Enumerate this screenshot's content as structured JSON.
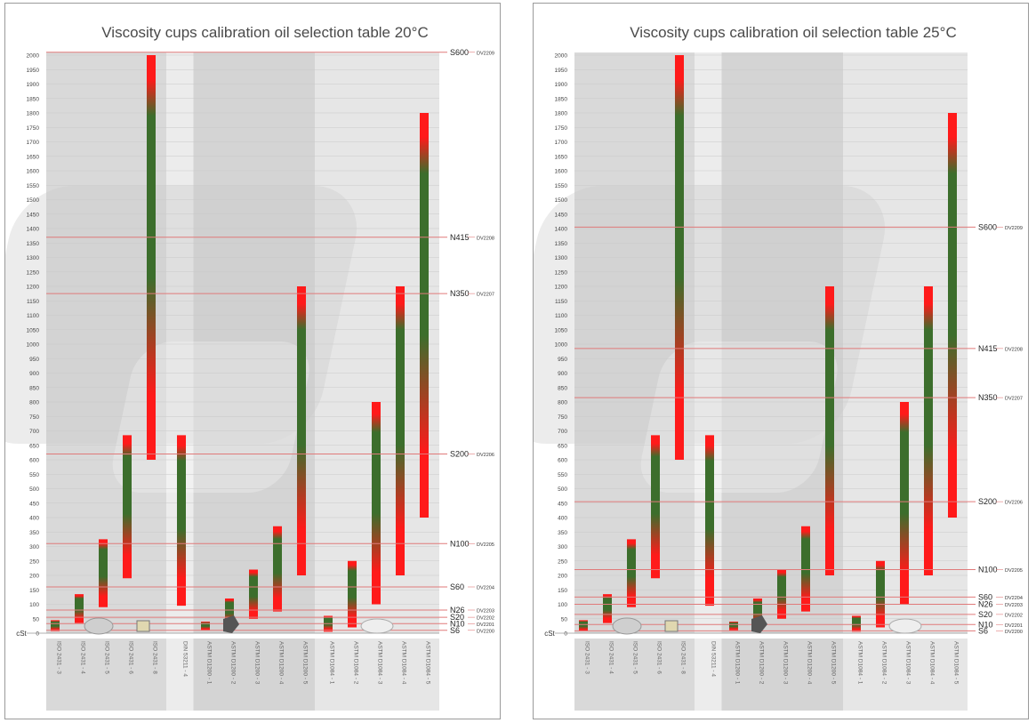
{
  "y_unit": "cSt",
  "y_ticks": [
    0,
    50,
    100,
    150,
    200,
    250,
    300,
    350,
    400,
    450,
    500,
    550,
    600,
    650,
    700,
    750,
    800,
    850,
    900,
    950,
    1000,
    1050,
    1100,
    1150,
    1200,
    1250,
    1300,
    1350,
    1400,
    1450,
    1500,
    1550,
    1600,
    1650,
    1700,
    1750,
    1800,
    1850,
    1900,
    1950,
    2000
  ],
  "cups": [
    "ISO 2431 - 3",
    "ISO 2431 - 4",
    "ISO 2431 - 5",
    "ISO 2431 - 6",
    "ISO 2431 - 8",
    "DIN 53211 - 4",
    "ASTM D1200 - 1",
    "ASTM D1200 - 2",
    "ASTM D1200 - 3",
    "ASTM D1200 - 4",
    "ASTM D1200 - 5",
    "ASTM D1084 - 1",
    "ASTM D1084 - 2",
    "ASTM D1084 - 3",
    "ASTM D1084 - 4",
    "ASTM D1084 - 5"
  ],
  "colors": {
    "green": "#3c6e2c",
    "red": "#ff1a1a",
    "line": "#e07a7a",
    "shade": "#d8d8d8"
  },
  "chart_data": [
    {
      "type": "bar",
      "title": "Viscosity cups calibration oil selection table 20°C",
      "ylabel": "cSt",
      "ylim": [
        0,
        2000
      ],
      "categories": [
        "ISO 2431 - 3",
        "ISO 2431 - 4",
        "ISO 2431 - 5",
        "ISO 2431 - 6",
        "ISO 2431 - 8",
        "DIN 53211 - 4",
        "ASTM D1200 - 1",
        "ASTM D1200 - 2",
        "ASTM D1200 - 3",
        "ASTM D1200 - 4",
        "ASTM D1200 - 5",
        "ASTM D1084 - 1",
        "ASTM D1084 - 2",
        "ASTM D1084 - 3",
        "ASTM D1084 - 4",
        "ASTM D1084 - 5"
      ],
      "ranges": [
        [
          7,
          45
        ],
        [
          35,
          135
        ],
        [
          90,
          325
        ],
        [
          190,
          685
        ],
        [
          600,
          2000
        ],
        [
          95,
          685
        ],
        [
          10,
          40
        ],
        [
          28,
          120
        ],
        [
          50,
          220
        ],
        [
          75,
          370
        ],
        [
          200,
          1200
        ],
        [
          5,
          60
        ],
        [
          20,
          250
        ],
        [
          100,
          800
        ],
        [
          200,
          1200
        ],
        [
          400,
          1800
        ]
      ],
      "oils": [
        {
          "name": "S600",
          "code": "DV2209",
          "value": 2010
        },
        {
          "name": "N415",
          "code": "DV2208",
          "value": 1370
        },
        {
          "name": "N350",
          "code": "DV2207",
          "value": 1175
        },
        {
          "name": "S200",
          "code": "DV2206",
          "value": 620
        },
        {
          "name": "N100",
          "code": "DV2205",
          "value": 310
        },
        {
          "name": "S60",
          "code": "DV2204",
          "value": 160
        },
        {
          "name": "N26",
          "code": "DV2203",
          "value": 80
        },
        {
          "name": "S20",
          "code": "DV2202",
          "value": 55
        },
        {
          "name": "N10",
          "code": "DV2201",
          "value": 33
        },
        {
          "name": "S6",
          "code": "DV2200",
          "value": 10
        }
      ]
    },
    {
      "type": "bar",
      "title": "Viscosity cups calibration oil selection table 25°C",
      "ylabel": "cSt",
      "ylim": [
        0,
        2000
      ],
      "categories": [
        "ISO 2431 - 3",
        "ISO 2431 - 4",
        "ISO 2431 - 5",
        "ISO 2431 - 6",
        "ISO 2431 - 8",
        "DIN 53211 - 4",
        "ASTM D1200 - 1",
        "ASTM D1200 - 2",
        "ASTM D1200 - 3",
        "ASTM D1200 - 4",
        "ASTM D1200 - 5",
        "ASTM D1084 - 1",
        "ASTM D1084 - 2",
        "ASTM D1084 - 3",
        "ASTM D1084 - 4",
        "ASTM D1084 - 5"
      ],
      "ranges": [
        [
          7,
          45
        ],
        [
          35,
          135
        ],
        [
          90,
          325
        ],
        [
          190,
          685
        ],
        [
          600,
          2000
        ],
        [
          95,
          685
        ],
        [
          10,
          40
        ],
        [
          28,
          120
        ],
        [
          50,
          220
        ],
        [
          75,
          370
        ],
        [
          200,
          1200
        ],
        [
          5,
          60
        ],
        [
          20,
          250
        ],
        [
          100,
          800
        ],
        [
          200,
          1200
        ],
        [
          400,
          1800
        ]
      ],
      "oils": [
        {
          "name": "S600",
          "code": "DV2209",
          "value": 1405
        },
        {
          "name": "N415",
          "code": "DV2208",
          "value": 985
        },
        {
          "name": "N350",
          "code": "DV2207",
          "value": 815
        },
        {
          "name": "S200",
          "code": "DV2206",
          "value": 455
        },
        {
          "name": "N100",
          "code": "DV2205",
          "value": 220
        },
        {
          "name": "S60",
          "code": "DV2204",
          "value": 125
        },
        {
          "name": "N26",
          "code": "DV2203",
          "value": 100
        },
        {
          "name": "S20",
          "code": "DV2202",
          "value": 65
        },
        {
          "name": "N10",
          "code": "DV2201",
          "value": 30
        },
        {
          "name": "S6",
          "code": "DV2200",
          "value": 8
        }
      ]
    }
  ]
}
